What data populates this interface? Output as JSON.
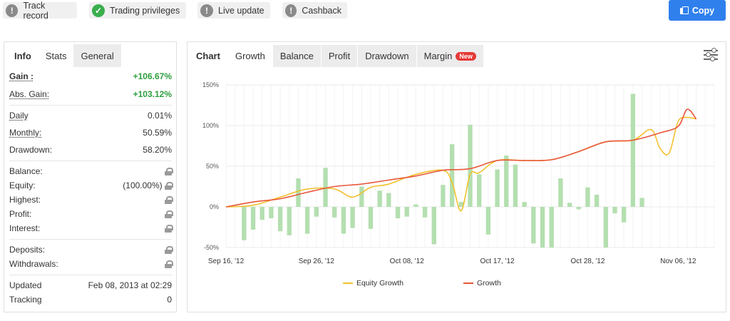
{
  "badges": [
    {
      "label": "Track record",
      "status": "unverified"
    },
    {
      "label": "Trading privileges",
      "status": "verified"
    },
    {
      "label": "Live update",
      "status": "unverified"
    },
    {
      "label": "Cashback",
      "status": "unverified"
    }
  ],
  "badge_glyphs": {
    "unverified": "!",
    "verified": "✓"
  },
  "copy_button": {
    "label": "Copy"
  },
  "left_tabs": [
    "Info",
    "Stats",
    "General"
  ],
  "stats": {
    "gain": {
      "label": "Gain :",
      "value": "+106.67%"
    },
    "abs_gain": {
      "label": "Abs. Gain:",
      "value": "+103.12%"
    },
    "daily": {
      "label": "Daily",
      "value": "0.01%"
    },
    "monthly": {
      "label": "Monthly:",
      "value": "50.59%"
    },
    "drawdown": {
      "label": "Drawdown:",
      "value": "58.20%"
    },
    "balance": {
      "label": "Balance:"
    },
    "equity": {
      "label": "Equity:",
      "value": "(100.00%)"
    },
    "highest": {
      "label": "Highest:"
    },
    "profit": {
      "label": "Profit:"
    },
    "interest": {
      "label": "Interest:"
    },
    "deposits": {
      "label": "Deposits:"
    },
    "withdrawals": {
      "label": "Withdrawals:"
    },
    "updated": {
      "label": "Updated",
      "value": "Feb 08, 2013 at 02:29"
    },
    "tracking": {
      "label": "Tracking",
      "value": "0"
    }
  },
  "chart_tabs": {
    "chart": "Chart",
    "growth": "Growth",
    "balance": "Balance",
    "profit": "Profit",
    "drawdown": "Drawdown",
    "margin": "Margin",
    "new_badge": "New"
  },
  "colors": {
    "accent": "#2f80ed",
    "equity_line": "#f2c12e",
    "growth_line": "#e8573a",
    "bars": "#b4dfb0",
    "gain_green": "#2e9e3f"
  },
  "chart_data": {
    "type": "bar+line",
    "x_tick_labels": [
      "Sep 16, '12",
      "Sep 26, '12",
      "Oct 08, '12",
      "Oct 17, '12",
      "Oct 28, '12",
      "Nov 06, '12"
    ],
    "x_tick_index": [
      0,
      10,
      20,
      30,
      40,
      50
    ],
    "y_ticks": [
      -50,
      0,
      50,
      100,
      150
    ],
    "y_tick_labels": [
      "-50%",
      "0%",
      "50%",
      "100%",
      "150%"
    ],
    "ylim": [
      -50,
      150
    ],
    "legend": [
      "Equity Growth",
      "Growth"
    ],
    "legend_position": "bottom",
    "bars": [
      -41,
      -28,
      -16,
      -14,
      -30,
      -35,
      35,
      -33,
      -12,
      48,
      -13,
      -33,
      -26,
      25,
      -27,
      20,
      17,
      -14,
      -12,
      3,
      -13,
      -46,
      27,
      77,
      6,
      101,
      40,
      -34,
      46,
      63,
      52,
      6,
      -45,
      -50,
      -50,
      35,
      5,
      -3,
      24,
      15,
      -50,
      -8,
      -19,
      139,
      11
    ],
    "bar_x_index": [
      2,
      3,
      4,
      5,
      6,
      7,
      8,
      9,
      10,
      11,
      12,
      13,
      14,
      15,
      16,
      17,
      18,
      19,
      20,
      21,
      22,
      23,
      24,
      25,
      26,
      27,
      28,
      29,
      30,
      31,
      32,
      33,
      34,
      35,
      36,
      37,
      38,
      39,
      40,
      41,
      42,
      43,
      44,
      45,
      46
    ],
    "growth_series": {
      "name": "Growth",
      "x_index": [
        0,
        3,
        6,
        9,
        12,
        15,
        18,
        21,
        24,
        27,
        30,
        33,
        36,
        39,
        42,
        45,
        48,
        50,
        51,
        52
      ],
      "values": [
        0,
        6,
        10,
        18,
        25,
        28,
        33,
        38,
        45,
        47,
        57,
        57,
        58,
        68,
        80,
        82,
        91,
        99,
        120,
        108
      ]
    },
    "equity_series": {
      "name": "Equity Growth",
      "x_index": [
        0,
        3,
        6,
        9,
        12,
        14,
        16,
        18,
        21,
        24,
        25,
        26,
        27,
        28,
        30,
        33,
        36,
        39,
        42,
        45,
        47,
        48,
        49,
        50,
        51,
        52
      ],
      "values": [
        0,
        2,
        12,
        22,
        22,
        12,
        24,
        28,
        40,
        45,
        30,
        -5,
        40,
        42,
        57,
        57,
        58,
        68,
        80,
        82,
        95,
        72,
        66,
        105,
        110,
        108
      ]
    }
  }
}
